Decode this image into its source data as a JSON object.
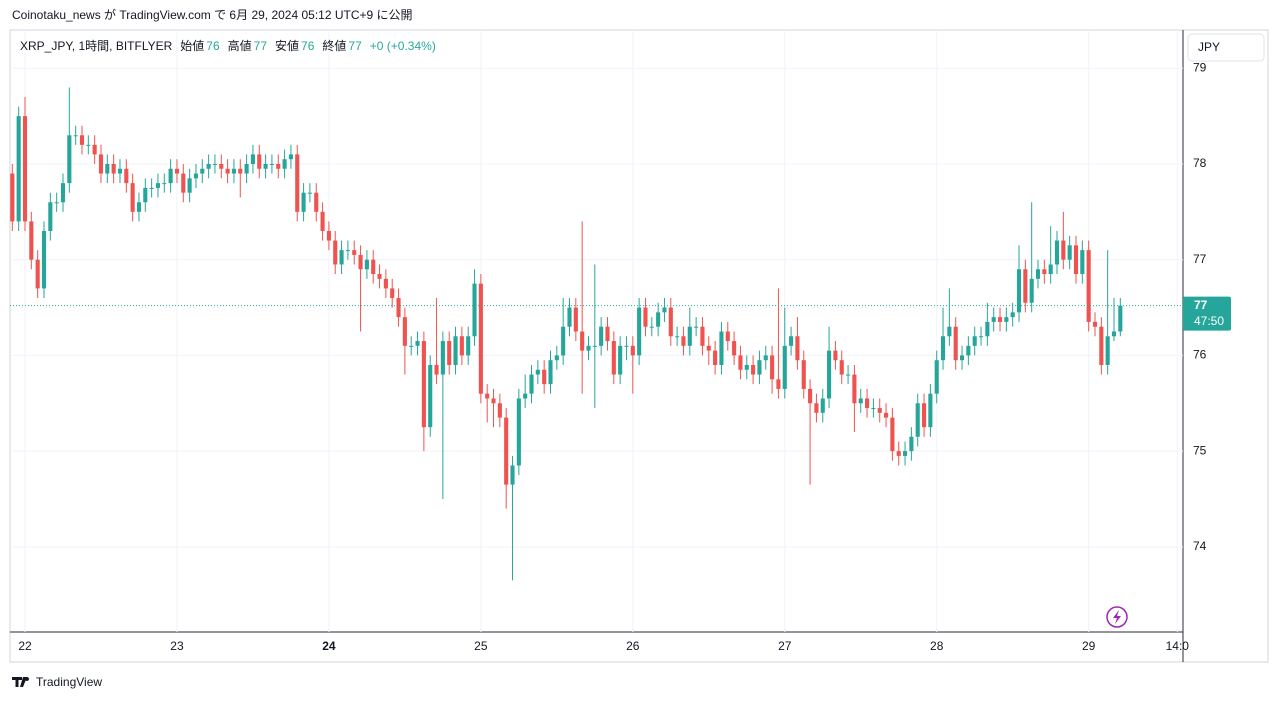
{
  "header": "Coinotaku_news が TradingView.com で 6月 29, 2024 05:12 UTC+9 に公開",
  "footer": "TradingView",
  "chart_data": {
    "type": "candlestick",
    "symbol": "XRP_JPY, 1時間, BITFLYER",
    "legend": [
      {
        "label": "始値",
        "value": 76
      },
      {
        "label": "高値",
        "value": 77
      },
      {
        "label": "安値",
        "value": 76
      },
      {
        "label": "終値",
        "value": 77
      }
    ],
    "change": "+0 (+0.34%)",
    "currency": "JPY",
    "price_label": {
      "value": 76.52,
      "label": "77"
    },
    "countdown": "47:50",
    "up_color": "#26a69a",
    "down_color": "#ef5350",
    "grid": true,
    "xlim": [
      -2.37,
      182.9
    ],
    "ylim": [
      73.11,
      79.4
    ],
    "yticks": [
      74,
      75,
      76,
      77,
      78,
      79
    ],
    "xticks": [
      {
        "value": 0,
        "label": "22"
      },
      {
        "value": 24,
        "label": "23"
      },
      {
        "value": 48,
        "label": "24"
      },
      {
        "value": 72,
        "label": "25"
      },
      {
        "value": 96,
        "label": "26"
      },
      {
        "value": 120,
        "label": "27"
      },
      {
        "value": 144,
        "label": "28"
      },
      {
        "value": 168,
        "label": "29"
      },
      {
        "value": 182,
        "label": "14:0"
      }
    ],
    "x": [
      -2,
      -1,
      0,
      1,
      2,
      3,
      4,
      5,
      6,
      7,
      8,
      9,
      10,
      11,
      12,
      13,
      14,
      15,
      16,
      17,
      18,
      19,
      20,
      21,
      22,
      23,
      24,
      25,
      26,
      27,
      28,
      29,
      30,
      31,
      32,
      33,
      34,
      35,
      36,
      37,
      38,
      39,
      40,
      41,
      42,
      43,
      44,
      45,
      46,
      47,
      48,
      49,
      50,
      51,
      52,
      53,
      54,
      55,
      56,
      57,
      58,
      59,
      60,
      61,
      62,
      63,
      64,
      65,
      66,
      67,
      68,
      69,
      70,
      71,
      72,
      73,
      74,
      75,
      76,
      77,
      78,
      79,
      80,
      81,
      82,
      83,
      84,
      85,
      86,
      87,
      88,
      89,
      90,
      91,
      92,
      93,
      94,
      95,
      96,
      97,
      98,
      99,
      100,
      101,
      102,
      103,
      104,
      105,
      106,
      107,
      108,
      109,
      110,
      111,
      112,
      113,
      114,
      115,
      116,
      117,
      118,
      119,
      120,
      121,
      122,
      123,
      124,
      125,
      126,
      127,
      128,
      129,
      130,
      131,
      132,
      133,
      134,
      135,
      136,
      137,
      138,
      139,
      140,
      141,
      142,
      143,
      144,
      145,
      146,
      147,
      148,
      149,
      150,
      151,
      152,
      153,
      154,
      155,
      156,
      157,
      158,
      159,
      160,
      161,
      162,
      163,
      164,
      165,
      166,
      167,
      168,
      169,
      170,
      171,
      172,
      173
    ],
    "open": [
      77.9,
      77.4,
      78.5,
      77.4,
      77.0,
      76.7,
      77.3,
      77.6,
      77.6,
      77.8,
      78.3,
      78.3,
      78.2,
      78.2,
      78.1,
      77.9,
      78.0,
      77.9,
      77.95,
      77.8,
      77.5,
      77.6,
      77.75,
      77.75,
      77.8,
      77.8,
      77.95,
      77.9,
      77.7,
      77.85,
      77.9,
      77.95,
      78.0,
      78.0,
      77.95,
      77.9,
      77.95,
      77.9,
      78.0,
      78.1,
      77.95,
      78.0,
      78.0,
      77.95,
      78.05,
      78.1,
      77.5,
      77.7,
      77.7,
      77.5,
      77.3,
      77.2,
      76.95,
      77.1,
      77.1,
      77.05,
      76.9,
      77.0,
      76.85,
      76.8,
      76.7,
      76.6,
      76.4,
      76.1,
      76.1,
      76.15,
      75.25,
      75.9,
      75.8,
      76.15,
      75.9,
      76.2,
      76.0,
      76.2,
      76.75,
      75.6,
      75.55,
      75.5,
      75.35,
      74.65,
      74.85,
      75.55,
      75.6,
      75.8,
      75.85,
      75.7,
      75.95,
      76.0,
      76.3,
      76.5,
      76.25,
      76.05,
      76.1,
      76.1,
      76.3,
      76.15,
      75.8,
      76.1,
      76.1,
      76.0,
      76.5,
      76.3,
      76.3,
      76.45,
      76.5,
      76.2,
      76.2,
      76.1,
      76.3,
      76.3,
      76.1,
      76.05,
      75.9,
      76.25,
      76.15,
      76.0,
      75.85,
      75.9,
      75.8,
      75.95,
      76.0,
      75.75,
      75.65,
      76.1,
      76.2,
      75.95,
      75.65,
      75.5,
      75.4,
      75.55,
      76.05,
      75.95,
      75.8,
      75.8,
      75.5,
      75.55,
      75.45,
      75.45,
      75.4,
      75.35,
      75.0,
      74.95,
      75.0,
      75.15,
      75.5,
      75.25,
      75.6,
      75.95,
      76.2,
      76.3,
      75.95,
      76.0,
      76.1,
      76.2,
      76.2,
      76.35,
      76.4,
      76.35,
      76.4,
      76.45,
      76.9,
      76.55,
      76.8,
      76.9,
      76.85,
      76.95,
      77.2,
      77.0,
      77.15,
      76.85,
      77.1,
      76.35,
      76.3,
      75.9,
      76.2,
      76.25
    ],
    "high": [
      78.0,
      78.6,
      78.7,
      77.5,
      77.1,
      77.4,
      77.7,
      77.7,
      77.9,
      78.8,
      78.4,
      78.4,
      78.3,
      78.3,
      78.2,
      78.1,
      78.1,
      78.05,
      78.05,
      77.9,
      77.7,
      77.85,
      77.85,
      77.9,
      77.9,
      78.05,
      78.05,
      78.0,
      77.95,
      78.0,
      78.05,
      78.1,
      78.1,
      78.1,
      78.05,
      78.05,
      78.05,
      78.1,
      78.2,
      78.2,
      78.1,
      78.1,
      78.1,
      78.15,
      78.2,
      78.2,
      77.8,
      77.8,
      77.8,
      77.6,
      77.4,
      77.3,
      77.2,
      77.2,
      77.2,
      77.15,
      77.1,
      77.1,
      76.95,
      76.9,
      76.8,
      76.7,
      76.5,
      76.2,
      76.25,
      76.25,
      76.0,
      76.6,
      76.25,
      76.25,
      76.3,
      76.3,
      76.3,
      76.9,
      76.85,
      75.7,
      75.65,
      75.6,
      75.45,
      74.95,
      75.65,
      75.8,
      75.9,
      75.95,
      75.95,
      76.05,
      76.1,
      76.6,
      76.6,
      76.6,
      77.4,
      76.2,
      76.95,
      76.4,
      76.4,
      76.25,
      76.2,
      76.2,
      76.2,
      76.6,
      76.6,
      76.4,
      76.55,
      76.6,
      76.6,
      76.3,
      76.3,
      76.5,
      76.4,
      76.4,
      76.2,
      76.15,
      76.35,
      76.35,
      76.25,
      76.1,
      76.0,
      76.0,
      76.05,
      76.1,
      76.1,
      76.7,
      76.5,
      76.3,
      76.4,
      76.05,
      75.75,
      75.6,
      75.65,
      76.3,
      76.15,
      76.05,
      75.9,
      75.9,
      75.65,
      75.65,
      75.55,
      75.55,
      75.5,
      75.45,
      75.1,
      75.1,
      75.25,
      75.6,
      75.6,
      75.7,
      76.05,
      76.5,
      76.7,
      76.4,
      76.1,
      76.2,
      76.3,
      76.3,
      76.55,
      76.5,
      76.5,
      76.5,
      76.55,
      77.15,
      77.0,
      77.6,
      77.0,
      77.0,
      77.35,
      77.3,
      77.5,
      77.25,
      77.25,
      77.2,
      77.2,
      76.45,
      76.4,
      77.1,
      76.6,
      76.6
    ],
    "low": [
      77.3,
      77.3,
      77.3,
      76.9,
      76.6,
      76.6,
      77.2,
      77.5,
      77.5,
      77.7,
      78.2,
      78.1,
      78.1,
      78.0,
      77.8,
      77.8,
      77.8,
      77.8,
      77.7,
      77.4,
      77.4,
      77.5,
      77.65,
      77.65,
      77.7,
      77.7,
      77.8,
      77.6,
      77.6,
      77.75,
      77.8,
      77.85,
      77.9,
      77.85,
      77.8,
      77.8,
      77.65,
      77.8,
      77.9,
      77.85,
      77.85,
      77.9,
      77.85,
      77.85,
      77.95,
      77.4,
      77.4,
      77.6,
      77.4,
      77.2,
      77.1,
      76.85,
      76.85,
      77.0,
      76.95,
      76.25,
      76.8,
      76.75,
      76.7,
      76.6,
      76.5,
      76.3,
      75.8,
      76.0,
      76.0,
      75.0,
      75.15,
      75.7,
      74.5,
      75.8,
      75.8,
      75.9,
      75.9,
      76.1,
      75.5,
      75.3,
      75.25,
      75.25,
      74.4,
      73.65,
      74.75,
      75.45,
      75.5,
      75.7,
      75.6,
      75.6,
      75.85,
      75.9,
      76.2,
      76.15,
      75.6,
      75.95,
      75.45,
      76.0,
      76.05,
      75.7,
      75.7,
      75.95,
      75.6,
      75.9,
      76.2,
      76.2,
      76.2,
      76.35,
      76.1,
      76.1,
      76.0,
      76.0,
      76.2,
      76.0,
      75.9,
      75.8,
      75.8,
      76.05,
      75.9,
      75.75,
      75.75,
      75.7,
      75.7,
      75.85,
      75.6,
      75.55,
      75.55,
      76.0,
      75.85,
      75.55,
      74.65,
      75.3,
      75.3,
      75.45,
      75.85,
      75.7,
      75.7,
      75.2,
      75.4,
      75.35,
      75.35,
      75.3,
      75.25,
      74.9,
      74.85,
      74.85,
      74.9,
      75.05,
      75.15,
      75.15,
      75.5,
      75.85,
      76.1,
      75.85,
      75.85,
      75.9,
      76.0,
      76.1,
      76.1,
      76.25,
      76.25,
      76.25,
      76.3,
      76.35,
      76.45,
      76.45,
      76.7,
      76.75,
      76.75,
      76.85,
      76.9,
      76.9,
      76.75,
      76.75,
      76.25,
      76.2,
      75.8,
      75.8,
      76.15,
      76.2
    ],
    "close": [
      77.4,
      78.5,
      77.4,
      77.0,
      76.7,
      77.3,
      77.6,
      77.6,
      77.8,
      78.3,
      78.3,
      78.2,
      78.2,
      78.1,
      77.9,
      78.0,
      77.9,
      77.95,
      77.8,
      77.5,
      77.6,
      77.75,
      77.75,
      77.8,
      77.8,
      77.95,
      77.9,
      77.7,
      77.85,
      77.9,
      77.95,
      78.0,
      78.0,
      77.95,
      77.9,
      77.95,
      77.9,
      78.0,
      78.1,
      77.95,
      78.0,
      78.0,
      77.95,
      78.05,
      78.1,
      77.5,
      77.7,
      77.7,
      77.5,
      77.3,
      77.2,
      76.95,
      77.1,
      77.1,
      77.05,
      76.9,
      77.0,
      76.85,
      76.8,
      76.7,
      76.6,
      76.4,
      76.1,
      76.1,
      76.15,
      75.25,
      75.9,
      75.8,
      76.15,
      75.9,
      76.2,
      76.0,
      76.2,
      76.75,
      75.6,
      75.55,
      75.5,
      75.35,
      74.65,
      74.85,
      75.55,
      75.6,
      75.8,
      75.85,
      75.7,
      75.95,
      76.0,
      76.3,
      76.5,
      76.25,
      76.05,
      76.1,
      76.1,
      76.3,
      76.15,
      75.8,
      76.1,
      76.1,
      76.0,
      76.5,
      76.3,
      76.3,
      76.45,
      76.5,
      76.2,
      76.2,
      76.1,
      76.3,
      76.3,
      76.1,
      76.05,
      75.9,
      76.25,
      76.15,
      76.0,
      75.85,
      75.9,
      75.8,
      75.95,
      76.0,
      75.75,
      75.65,
      76.1,
      76.2,
      75.95,
      75.65,
      75.5,
      75.4,
      75.55,
      76.05,
      75.95,
      75.8,
      75.8,
      75.5,
      75.55,
      75.45,
      75.45,
      75.4,
      75.35,
      75.0,
      74.95,
      75.0,
      75.15,
      75.5,
      75.25,
      75.6,
      75.95,
      76.2,
      76.3,
      75.95,
      76.0,
      76.1,
      76.2,
      76.2,
      76.35,
      76.4,
      76.35,
      76.4,
      76.45,
      76.9,
      76.55,
      76.8,
      76.9,
      76.85,
      76.95,
      77.2,
      77.0,
      77.15,
      76.85,
      77.1,
      76.35,
      76.3,
      75.9,
      76.2,
      76.25,
      76.52
    ]
  }
}
